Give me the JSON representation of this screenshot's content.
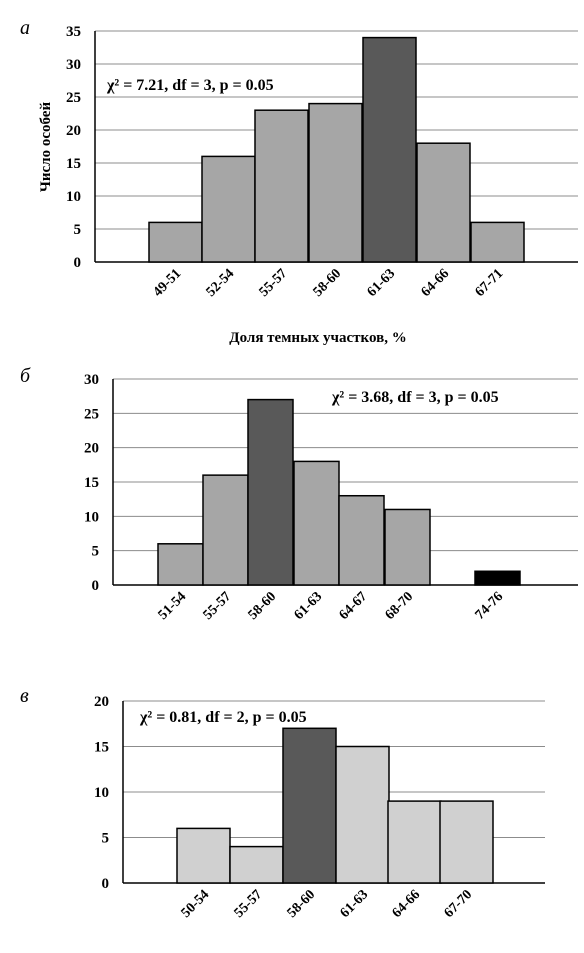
{
  "colors": {
    "light": "#a6a6a6",
    "lighter": "#d0d0d0",
    "dark": "#595959",
    "black": "#000000",
    "grid": "#8c8c8c"
  },
  "chart_data": [
    {
      "type": "bar",
      "panel": "а",
      "annotation": "χ² = 7.21, df = 3, p = 0.05",
      "ylabel": "Число особей",
      "xlabel": "Доля темных участков, %",
      "ylim": [
        0,
        35
      ],
      "yticks": [
        0,
        5,
        10,
        15,
        20,
        25,
        30,
        35
      ],
      "grid": true,
      "categories": [
        "49-51",
        "52-54",
        "55-57",
        "58-60",
        "61-63",
        "64-66",
        "67-71"
      ],
      "values": [
        6,
        16,
        23,
        24,
        34,
        18,
        6
      ],
      "highlight": [
        "61-63"
      ]
    },
    {
      "type": "bar",
      "panel": "б",
      "annotation": "χ² = 3.68, df = 3, p = 0.05",
      "ylim": [
        0,
        30
      ],
      "yticks": [
        0,
        5,
        10,
        15,
        20,
        25,
        30
      ],
      "grid": true,
      "categories": [
        "51-54",
        "55-57",
        "58-60",
        "61-63",
        "64-67",
        "68-70",
        "74-76"
      ],
      "values": [
        6,
        16,
        27,
        18,
        13,
        11,
        2
      ],
      "highlight": [
        "58-60"
      ],
      "outlier": [
        "74-76"
      ]
    },
    {
      "type": "bar",
      "panel": "в",
      "annotation": "χ² = 0.81, df = 2, p = 0.05",
      "ylim": [
        0,
        20
      ],
      "yticks": [
        0,
        5,
        10,
        15,
        20
      ],
      "grid": true,
      "categories": [
        "50-54",
        "55-57",
        "58-60",
        "61-63",
        "64-66",
        "67-70"
      ],
      "values": [
        6,
        4,
        17,
        15,
        9,
        9
      ],
      "highlight": [
        "58-60"
      ]
    }
  ]
}
